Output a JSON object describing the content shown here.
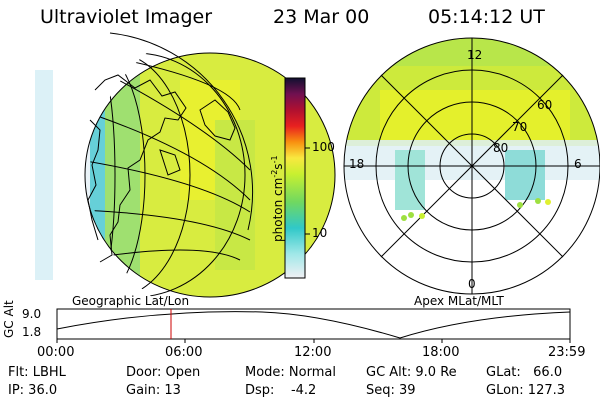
{
  "header": {
    "instrument": "Ultraviolet Imager",
    "date": "23 Mar 00",
    "time": "05:14:12 UT"
  },
  "colorbar": {
    "label": "photon cm",
    "label_sup1": "-2",
    "label_s": "s",
    "label_sup2": "-1",
    "ticks": [
      "100",
      "10"
    ]
  },
  "left_panel": {
    "caption": "Geographic Lat/Lon"
  },
  "right_panel": {
    "caption": "Apex MLat/MLT",
    "mlt_labels": {
      "top": "12",
      "left": "18",
      "right": "6",
      "bottom": "0"
    },
    "lat_labels": [
      "60",
      "70",
      "80"
    ]
  },
  "timeline": {
    "ylabel": "GC Alt",
    "ytick_top": "9.0",
    "ytick_bottom": "1.8",
    "xticks": [
      "00:00",
      "06:00",
      "12:00",
      "18:00",
      "23:59"
    ]
  },
  "status": {
    "filter": "Flt: LBHL",
    "ip": "IP: 36.0",
    "door": "Door: Open",
    "gain": "Gain: 13",
    "mode": "Mode: Normal",
    "dsp": "Dsp:    -4.2",
    "gc_alt": "GC Alt: 9.0 Re",
    "seq": "Seq: 39",
    "glat": "GLat:   66.0",
    "glon": "GLon: 127.3"
  },
  "colors": {
    "aurora_yellow": "#d8f030",
    "aurora_green": "#7ee060",
    "aurora_cyan": "#60d8d8",
    "marker_red": "#cc0000"
  }
}
